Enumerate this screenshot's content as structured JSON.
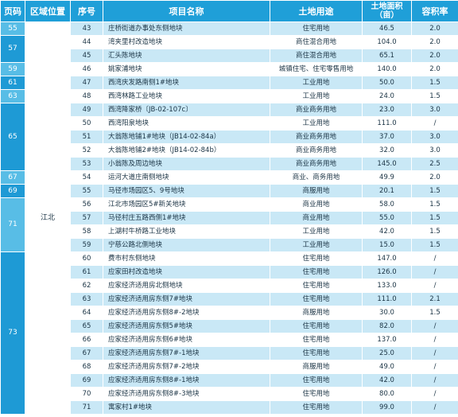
{
  "headers": {
    "page": "页码",
    "region": "区域位置",
    "seq": "序号",
    "name": "项目名称",
    "use": "土地用途",
    "area_line1": "土地面积",
    "area_line2": "（亩）",
    "far": "容积率"
  },
  "region_value": "江北",
  "page_groups": [
    {
      "page": "55",
      "rows": 1
    },
    {
      "page": "57",
      "rows": 2
    },
    {
      "page": "59",
      "rows": 1
    },
    {
      "page": "61",
      "rows": 1
    },
    {
      "page": "63",
      "rows": 1
    },
    {
      "page": "65",
      "rows": 5
    },
    {
      "page": "67",
      "rows": 1
    },
    {
      "page": "69",
      "rows": 1
    },
    {
      "page": "71",
      "rows": 4
    },
    {
      "page": "73",
      "rows": 12
    }
  ],
  "rows": [
    {
      "seq": "43",
      "name": "庄桥街道办事处东侧地块",
      "use": "住宅用地",
      "area": "46.5",
      "far": "2.0"
    },
    {
      "seq": "44",
      "name": "湾夹里村改造地块",
      "use": "商住混合用地",
      "area": "104.0",
      "far": "2.0"
    },
    {
      "seq": "45",
      "name": "汇头陈地块",
      "use": "商住混合用地",
      "area": "65.1",
      "far": "2.0"
    },
    {
      "seq": "46",
      "name": "姚家浦地块",
      "use": "城镇住宅、住宅零售用地",
      "area": "140.0",
      "far": "2.0"
    },
    {
      "seq": "47",
      "name": "西湾庆发路南侧1#地块",
      "use": "工业用地",
      "area": "50.0",
      "far": "1.5"
    },
    {
      "seq": "48",
      "name": "西湾林路工业地块",
      "use": "工业用地",
      "area": "24.0",
      "far": "1.5"
    },
    {
      "seq": "49",
      "name": "西湾降家桥〔JB-02-107c〕",
      "use": "商业商务用地",
      "area": "23.0",
      "far": "3.0"
    },
    {
      "seq": "50",
      "name": "西湾阳泉地块",
      "use": "工业用地",
      "area": "111.0",
      "far": "/"
    },
    {
      "seq": "51",
      "name": "大翁陈地铺1#地块（JB14-02-84a）",
      "use": "商业商务用地",
      "area": "37.0",
      "far": "3.0"
    },
    {
      "seq": "52",
      "name": "大翁陈地铺2#地块（JB14-02-84b）",
      "use": "商业商务用地",
      "area": "32.0",
      "far": "3.0"
    },
    {
      "seq": "53",
      "name": "小翁陈及周边地块",
      "use": "商业商务用地",
      "area": "145.0",
      "far": "2.5"
    },
    {
      "seq": "54",
      "name": "运河大道庄南侧地块",
      "use": "商业、商务用地",
      "area": "49.9",
      "far": "2.0"
    },
    {
      "seq": "55",
      "name": "马径市场园区5、9号地块",
      "use": "商服用地",
      "area": "20.1",
      "far": "1.5"
    },
    {
      "seq": "56",
      "name": "江北市场园区5#新关地块",
      "use": "商业用地",
      "area": "58.0",
      "far": "1.5"
    },
    {
      "seq": "57",
      "name": "马径村庄五路西侧1#地块",
      "use": "商业用地",
      "area": "55.0",
      "far": "1.5"
    },
    {
      "seq": "58",
      "name": "上湖村牛桥路工业地块",
      "use": "工业用地",
      "area": "42.0",
      "far": "1.5"
    },
    {
      "seq": "59",
      "name": "宁慈公路北侧地块",
      "use": "工业用地",
      "area": "15.0",
      "far": "1.5"
    },
    {
      "seq": "60",
      "name": "费市村东侧地块",
      "use": "住宅用地",
      "area": "147.0",
      "far": "/"
    },
    {
      "seq": "61",
      "name": "应家田村改造地块",
      "use": "住宅用地",
      "area": "126.0",
      "far": "/"
    },
    {
      "seq": "62",
      "name": "应家经济适用房北侧地块",
      "use": "住宅用地",
      "area": "133.0",
      "far": "/"
    },
    {
      "seq": "63",
      "name": "应家经济适用房东侧7#地块",
      "use": "住宅用地",
      "area": "111.0",
      "far": "2.1"
    },
    {
      "seq": "64",
      "name": "应家经济适用房东侧8#-2地块",
      "use": "商服用地",
      "area": "30.0",
      "far": "1.5"
    },
    {
      "seq": "65",
      "name": "应家经济适用房东侧5#地块",
      "use": "住宅用地",
      "area": "82.0",
      "far": "/"
    },
    {
      "seq": "66",
      "name": "应家经济适用房东侧6#地块",
      "use": "住宅用地",
      "area": "137.0",
      "far": "/"
    },
    {
      "seq": "67",
      "name": "应家经济适用房东侧7#-1地块",
      "use": "住宅用地",
      "area": "25.0",
      "far": "/"
    },
    {
      "seq": "68",
      "name": "应家经济适用房东侧7#-2地块",
      "use": "商服用地",
      "area": "49.0",
      "far": "/"
    },
    {
      "seq": "69",
      "name": "应家经济适用房东侧8#-1地块",
      "use": "住宅用地",
      "area": "42.0",
      "far": "/"
    },
    {
      "seq": "70",
      "name": "应家经济适用房东侧8#-3地块",
      "use": "住宅用地",
      "area": "80.0",
      "far": "/"
    },
    {
      "seq": "71",
      "name": "寓家村1#地块",
      "use": "住宅用地",
      "area": "99.0",
      "far": "/"
    }
  ]
}
